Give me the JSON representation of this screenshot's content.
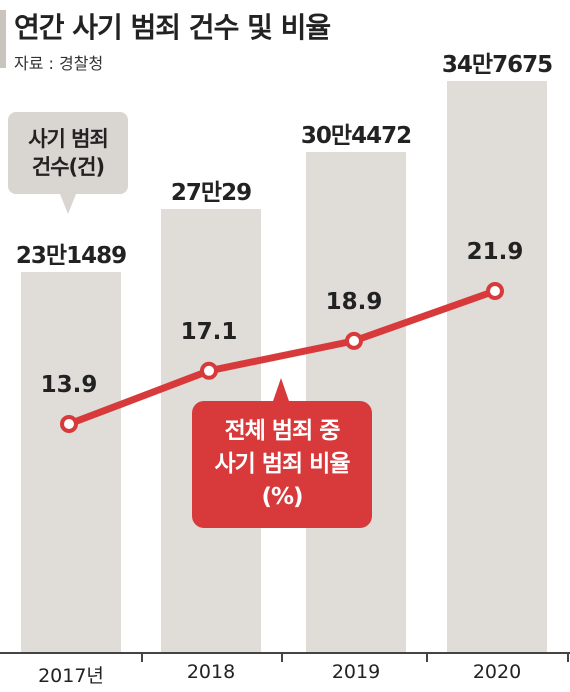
{
  "header": {
    "title": "연간 사기 범죄 건수 및 비율",
    "source": "자료 : 경찰청"
  },
  "legend": {
    "bars_line1": "사기 범죄",
    "bars_line2": "건수(건)",
    "line_line1": "전체 범죄 중",
    "line_line2": "사기 범죄 비율",
    "line_line3": "(%)"
  },
  "colors": {
    "bar": "#e0dcd7",
    "line": "#d83a3c"
  },
  "chart_data": {
    "type": "bar",
    "categories": [
      "2017년",
      "2018",
      "2019",
      "2020"
    ],
    "series": [
      {
        "name": "사기 범죄 건수(건)",
        "type": "bar",
        "values": [
          231489,
          270029,
          304472,
          347675
        ],
        "labels": [
          "23만1489",
          "27만29",
          "30만4472",
          "34만7675"
        ]
      },
      {
        "name": "전체 범죄 중 사기 범죄 비율(%)",
        "type": "line",
        "values": [
          13.9,
          17.1,
          18.9,
          21.9
        ],
        "labels": [
          "13.9",
          "17.1",
          "18.9",
          "21.9"
        ]
      }
    ],
    "grid": false
  }
}
